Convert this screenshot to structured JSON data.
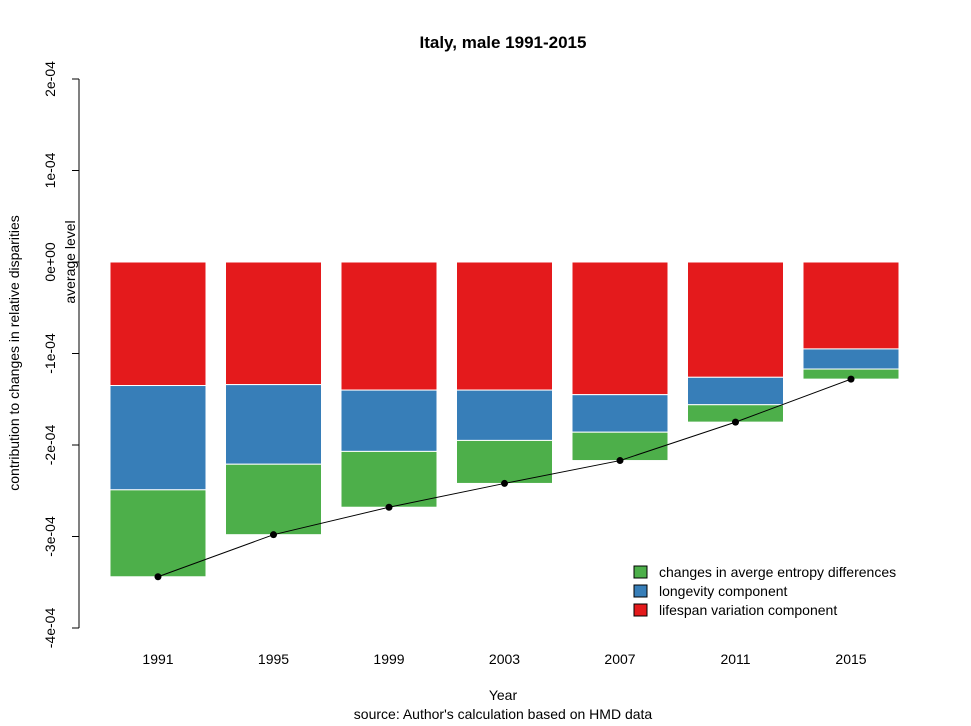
{
  "chart_data": {
    "type": "bar",
    "stacked": true,
    "title": "Italy, male 1991-2015",
    "xlabel": "Year",
    "ylabel": "contribution to changes in relative disparities",
    "ylabel2": "average level",
    "caption": "source: Author's calculation based on HMD data",
    "ylim": [
      -0.0004,
      0.0002
    ],
    "yticks": [
      {
        "value": 0.0002,
        "label": "2e-04"
      },
      {
        "value": 0.0001,
        "label": "1e-04"
      },
      {
        "value": 0.0,
        "label": "0e+00"
      },
      {
        "value": -0.0001,
        "label": "-1e-04"
      },
      {
        "value": -0.0002,
        "label": "-2e-04"
      },
      {
        "value": -0.0003,
        "label": "-3e-04"
      },
      {
        "value": -0.0004,
        "label": "-4e-04"
      }
    ],
    "categories": [
      "1991",
      "1995",
      "1999",
      "2003",
      "2007",
      "2011",
      "2015"
    ],
    "series": [
      {
        "name": "lifespan variation component",
        "color": "#E41A1C",
        "values": [
          -0.000135,
          -0.000134,
          -0.00014,
          -0.00014,
          -0.000145,
          -0.000126,
          -9.5e-05
        ]
      },
      {
        "name": "longevity component",
        "color": "#377EB8",
        "values": [
          -0.000114,
          -8.7e-05,
          -6.7e-05,
          -5.5e-05,
          -4.1e-05,
          -3e-05,
          -2.2e-05
        ]
      },
      {
        "name": "changes in averge entropy differences",
        "color": "#4DAF4A",
        "values": [
          -9.5e-05,
          -7.7e-05,
          -6.1e-05,
          -4.7e-05,
          -3.1e-05,
          -1.9e-05,
          -1.1e-05
        ]
      }
    ],
    "line": {
      "name": "average level",
      "values": [
        -0.000344,
        -0.000298,
        -0.000268,
        -0.000242,
        -0.000217,
        -0.000175,
        -0.000128
      ]
    },
    "legend": {
      "position": "bottom-right",
      "entries": [
        {
          "label": "changes in averge entropy differences",
          "color": "#4DAF4A"
        },
        {
          "label": "longevity component",
          "color": "#377EB8"
        },
        {
          "label": "lifespan variation component",
          "color": "#E41A1C"
        }
      ]
    }
  }
}
